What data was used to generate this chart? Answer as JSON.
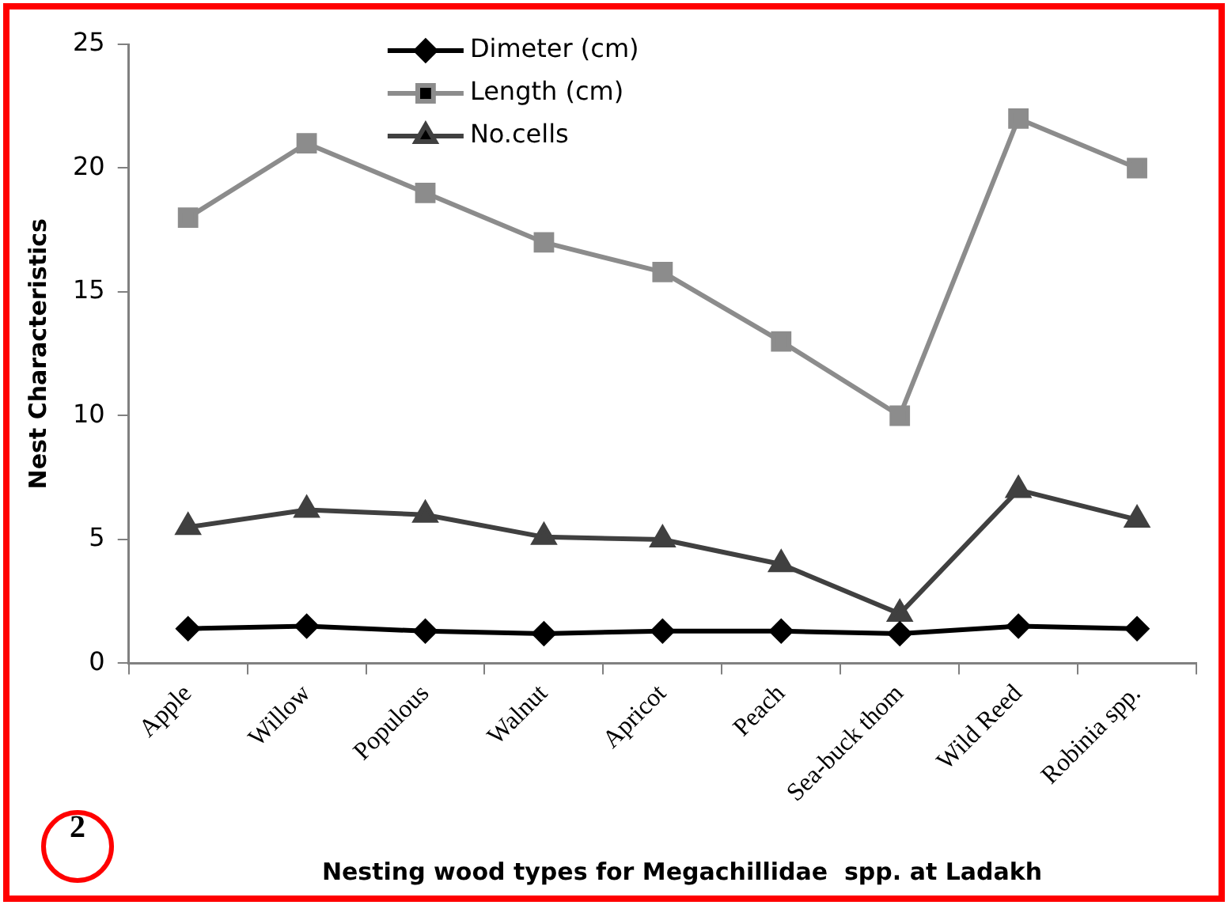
{
  "chart_data": {
    "type": "line",
    "xlabel": "Nesting wood types for Megachillidae  spp. at Ladakh",
    "ylabel": "Nest Characteristics",
    "categories": [
      "Apple",
      "Willow",
      "Populous",
      "Walnut",
      "Apricot",
      "Peach",
      "Sea-buck thom",
      "Wild Reed",
      "Robinia spp."
    ],
    "series": [
      {
        "name": "Dimeter (cm)",
        "color": "#000000",
        "marker": "diamond",
        "values": [
          1.4,
          1.5,
          1.3,
          1.2,
          1.3,
          1.3,
          1.2,
          1.5,
          1.4
        ]
      },
      {
        "name": "Length (cm)",
        "color": "#8c8c8c",
        "marker": "square",
        "values": [
          18,
          21,
          19,
          17,
          15.8,
          13,
          10,
          22,
          20
        ]
      },
      {
        "name": "No.cells",
        "color": "#404040",
        "marker": "triangle",
        "values": [
          5.5,
          6.2,
          6,
          5.1,
          5,
          4,
          2,
          7,
          5.8
        ]
      }
    ],
    "ylim": [
      0,
      25
    ],
    "yticks": [
      0,
      5,
      10,
      15,
      20,
      25
    ],
    "legend": "top",
    "annotations": [
      "2"
    ]
  }
}
